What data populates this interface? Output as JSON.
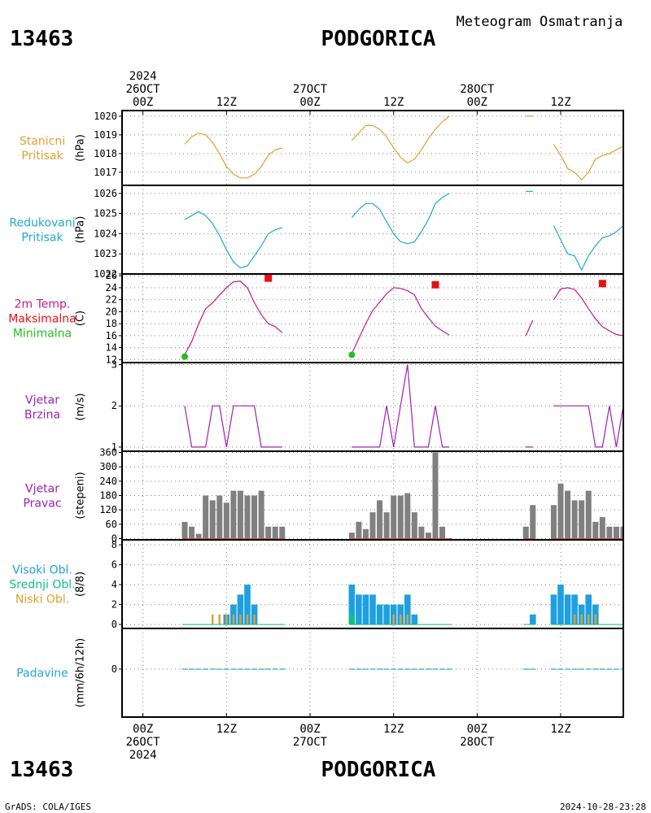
{
  "header": {
    "station_id": "13463",
    "station_name": "PODGORICA",
    "subtitle": "Meteogram Osmatranja"
  },
  "footer": {
    "station_id": "13463",
    "station_name": "PODGORICA",
    "credit": "GrADS: COLA/IGES",
    "timestamp": "2024-10-28-23:28"
  },
  "time_axis": {
    "top": [
      {
        "hour": 0,
        "lines": [
          "2024",
          "26OCT",
          "00Z"
        ]
      },
      {
        "hour": 12,
        "lines": [
          "12Z"
        ]
      },
      {
        "hour": 24,
        "lines": [
          "27OCT",
          "00Z"
        ]
      },
      {
        "hour": 36,
        "lines": [
          "12Z"
        ]
      },
      {
        "hour": 48,
        "lines": [
          "28OCT",
          "00Z"
        ]
      },
      {
        "hour": 60,
        "lines": [
          "12Z"
        ]
      }
    ],
    "bottom": [
      {
        "hour": 0,
        "lines": [
          "00Z",
          "26OCT",
          "2024"
        ]
      },
      {
        "hour": 12,
        "lines": [
          "12Z"
        ]
      },
      {
        "hour": 24,
        "lines": [
          "00Z",
          "27OCT"
        ]
      },
      {
        "hour": 36,
        "lines": [
          "12Z"
        ]
      },
      {
        "hour": 48,
        "lines": [
          "00Z",
          "28OCT"
        ]
      },
      {
        "hour": 60,
        "lines": [
          "12Z"
        ]
      }
    ],
    "range_hours": [
      -3,
      69
    ]
  },
  "colors": {
    "pressure": "#e0a030",
    "reduced": "#20a8d0",
    "temp": "#c01890",
    "tmax": "#e81010",
    "tmin": "#20c020",
    "wind": "#a020b0",
    "wind_dir": "#808080",
    "high_cloud": "#1ea0e0",
    "mid_cloud": "#10c080",
    "low_cloud": "#e0a030",
    "precip": "#20a8d0"
  },
  "chart_data": [
    {
      "type": "line",
      "labels": [
        "Stanicni",
        "Pritisak"
      ],
      "ylabel": "(hPa)",
      "ylim": [
        1016.3,
        1020.3
      ],
      "yticks": [
        1017,
        1018,
        1019,
        1020
      ],
      "series": [
        {
          "x": [
            6,
            7,
            8,
            9,
            10,
            11,
            12,
            13,
            14,
            15,
            16,
            17,
            18,
            19,
            20
          ],
          "y": [
            1018.5,
            1018.9,
            1019.1,
            1019.0,
            1018.6,
            1018.0,
            1017.3,
            1016.9,
            1016.7,
            1016.7,
            1016.9,
            1017.3,
            1017.9,
            1018.2,
            1018.3
          ]
        },
        {
          "x": [
            30,
            31,
            32,
            33,
            34,
            35,
            36,
            37,
            38,
            39,
            40,
            41,
            42,
            43,
            44
          ],
          "y": [
            1018.7,
            1019.1,
            1019.5,
            1019.5,
            1019.3,
            1018.9,
            1018.3,
            1017.8,
            1017.5,
            1017.7,
            1018.2,
            1018.8,
            1019.3,
            1019.7,
            1020.0
          ]
        },
        {
          "x": [
            55,
            56
          ],
          "y": [
            1020.0,
            1020.0
          ]
        },
        {
          "x": [
            59,
            60,
            61,
            62,
            63,
            64,
            65,
            66,
            67,
            68,
            69
          ],
          "y": [
            1018.5,
            1017.9,
            1017.2,
            1017.0,
            1016.6,
            1017.0,
            1017.7,
            1017.9,
            1018.0,
            1018.2,
            1018.4
          ]
        }
      ]
    },
    {
      "type": "line",
      "labels": [
        "Redukovani",
        "Pritisak"
      ],
      "ylabel": "(hPa)",
      "ylim": [
        1022,
        1026.4
      ],
      "yticks": [
        1022,
        1023,
        1024,
        1025,
        1026
      ],
      "series": [
        {
          "x": [
            6,
            7,
            8,
            9,
            10,
            11,
            12,
            13,
            14,
            15,
            16,
            17,
            18,
            19,
            20
          ],
          "y": [
            1024.7,
            1024.9,
            1025.1,
            1024.9,
            1024.5,
            1023.9,
            1023.2,
            1022.6,
            1022.3,
            1022.4,
            1022.9,
            1023.4,
            1024.0,
            1024.2,
            1024.3
          ]
        },
        {
          "x": [
            30,
            31,
            32,
            33,
            34,
            35,
            36,
            37,
            38,
            39,
            40,
            41,
            42,
            43,
            44
          ],
          "y": [
            1024.8,
            1025.2,
            1025.5,
            1025.5,
            1025.2,
            1024.6,
            1024.0,
            1023.6,
            1023.5,
            1023.6,
            1024.1,
            1024.7,
            1025.5,
            1025.8,
            1026.0
          ]
        },
        {
          "x": [
            55,
            56
          ],
          "y": [
            1026.1,
            1026.1
          ]
        },
        {
          "x": [
            59,
            60,
            61,
            62,
            63,
            64,
            65,
            66,
            67,
            68,
            69
          ],
          "y": [
            1024.4,
            1023.7,
            1023.0,
            1022.9,
            1022.2,
            1022.9,
            1023.4,
            1023.8,
            1023.9,
            1024.1,
            1024.4
          ]
        }
      ]
    },
    {
      "type": "line",
      "labels": [
        "2m Temp.",
        "Maksimalna",
        "Minimalna"
      ],
      "ylabel": "(C)",
      "ylim": [
        11.5,
        26.3
      ],
      "yticks": [
        12,
        14,
        16,
        18,
        20,
        22,
        24,
        26
      ],
      "series": [
        {
          "x": [
            6,
            7,
            8,
            9,
            10,
            11,
            12,
            13,
            14,
            15,
            16,
            17,
            18,
            19,
            20
          ],
          "y": [
            12.8,
            15.0,
            18.0,
            20.5,
            21.5,
            22.8,
            24.0,
            25.0,
            25.1,
            24.0,
            21.5,
            19.5,
            18.0,
            17.5,
            16.5
          ]
        },
        {
          "x": [
            30,
            31,
            32,
            33,
            34,
            35,
            36,
            37,
            38,
            39,
            40,
            41,
            42,
            43,
            44
          ],
          "y": [
            13.0,
            15.5,
            18.0,
            20.2,
            21.6,
            23.0,
            24.0,
            23.9,
            23.5,
            22.8,
            20.5,
            19.0,
            17.6,
            16.8,
            16.1
          ]
        },
        {
          "x": [
            55,
            56
          ],
          "y": [
            16.0,
            18.6
          ]
        },
        {
          "x": [
            59,
            60,
            61,
            62,
            63,
            64,
            65,
            66,
            67,
            68,
            69
          ],
          "y": [
            22.0,
            23.8,
            24.0,
            23.7,
            22.3,
            20.5,
            18.8,
            17.5,
            16.8,
            16.2,
            16.0
          ]
        }
      ],
      "maxima": [
        {
          "x": 18,
          "y": 25.6
        },
        {
          "x": 42,
          "y": 24.5
        },
        {
          "x": 66,
          "y": 24.7
        }
      ],
      "minima": [
        {
          "x": 6,
          "y": 12.5
        },
        {
          "x": 30,
          "y": 12.8
        }
      ]
    },
    {
      "type": "line",
      "labels": [
        "Vjetar",
        "Brzina"
      ],
      "ylabel": "(m/s)",
      "ylim": [
        0.9,
        3.05
      ],
      "yticks": [
        1,
        2,
        3
      ],
      "series": [
        {
          "x": [
            6,
            7,
            8,
            9,
            10,
            11,
            12,
            13,
            14,
            15,
            16,
            17,
            18,
            19,
            20
          ],
          "y": [
            2,
            1,
            1,
            1,
            2,
            2,
            1,
            2,
            2,
            2,
            2,
            1,
            1,
            1,
            1
          ]
        },
        {
          "x": [
            30,
            31,
            32,
            33,
            34,
            35,
            36,
            37,
            38,
            39,
            40,
            41,
            42,
            43,
            44
          ],
          "y": [
            1,
            1,
            1,
            1,
            1,
            2,
            1,
            2,
            3,
            1,
            1,
            1,
            2,
            1,
            1
          ]
        },
        {
          "x": [
            55,
            56
          ],
          "y": [
            1,
            1
          ]
        },
        {
          "x": [
            59,
            60,
            61,
            62,
            63,
            64,
            65,
            66,
            67,
            68,
            69
          ],
          "y": [
            2,
            2,
            2,
            2,
            2,
            2,
            1,
            1,
            2,
            1,
            2
          ]
        }
      ]
    },
    {
      "type": "bar",
      "labels": [
        "Vjetar",
        "Pravac"
      ],
      "ylabel": "(stepeni)",
      "ylim": [
        -5,
        365
      ],
      "yticks": [
        0,
        60,
        120,
        180,
        240,
        300,
        360
      ],
      "x": [
        6,
        7,
        8,
        9,
        10,
        11,
        12,
        13,
        14,
        15,
        16,
        17,
        18,
        19,
        20,
        30,
        31,
        32,
        33,
        34,
        35,
        36,
        37,
        38,
        39,
        40,
        41,
        42,
        43,
        44,
        55,
        56,
        59,
        60,
        61,
        62,
        63,
        64,
        65,
        66,
        67,
        68,
        69
      ],
      "values": [
        70,
        50,
        20,
        180,
        160,
        180,
        150,
        200,
        200,
        180,
        180,
        200,
        50,
        50,
        50,
        25,
        70,
        40,
        110,
        160,
        110,
        180,
        180,
        190,
        110,
        50,
        25,
        360,
        50,
        0,
        50,
        140,
        140,
        230,
        200,
        160,
        160,
        200,
        70,
        90,
        50,
        50,
        50
      ]
    },
    {
      "type": "bar",
      "labels": [
        "Visoki Obl.",
        "Srednji Obl.",
        "Niski Obl."
      ],
      "ylabel": "(8/8)",
      "ylim": [
        -0.4,
        8.5
      ],
      "yticks": [
        0,
        2,
        4,
        6,
        8
      ],
      "x": [
        6,
        7,
        8,
        9,
        10,
        11,
        12,
        13,
        14,
        15,
        16,
        17,
        18,
        19,
        20,
        30,
        31,
        32,
        33,
        34,
        35,
        36,
        37,
        38,
        39,
        40,
        41,
        42,
        43,
        44,
        55,
        56,
        59,
        60,
        61,
        62,
        63,
        64,
        65,
        66,
        67,
        68,
        69
      ],
      "series": [
        {
          "name": "Visoki Obl.",
          "values": [
            0,
            0,
            0,
            0,
            0,
            0,
            1,
            2,
            3,
            4,
            2,
            0,
            0,
            0,
            0,
            4,
            3,
            3,
            3,
            2,
            2,
            2,
            2,
            3,
            1,
            0,
            0,
            0,
            0,
            0,
            0,
            1,
            3,
            4,
            3,
            3,
            2,
            3,
            2,
            0,
            0,
            0,
            0
          ]
        },
        {
          "name": "Srednji Obl.",
          "values": [
            0,
            0,
            0,
            0,
            0,
            0,
            0,
            0,
            0,
            0,
            0,
            0,
            0,
            0,
            0,
            1,
            0,
            0,
            0,
            0,
            0,
            0,
            0,
            0,
            0,
            0,
            0,
            0,
            0,
            0,
            0,
            0,
            0,
            0,
            0,
            0,
            0,
            0,
            0,
            0,
            0,
            0,
            0
          ]
        },
        {
          "name": "Niski Obl.",
          "values": [
            0,
            0,
            0,
            0,
            1,
            1,
            1,
            1,
            1,
            1,
            1,
            0,
            0,
            0,
            0,
            0,
            0,
            0,
            0,
            0,
            0,
            1,
            1,
            1,
            0,
            0,
            0,
            0,
            0,
            0,
            0,
            0,
            0,
            0,
            0,
            1,
            1,
            1,
            1,
            0,
            0,
            0,
            0
          ]
        }
      ]
    },
    {
      "type": "bar",
      "labels": [
        "Padavine"
      ],
      "ylabel": "(mm/6h/12h)",
      "ylim": [
        -1.3,
        1.1
      ],
      "yticks": [
        0
      ],
      "x": [
        6,
        7,
        8,
        9,
        10,
        11,
        12,
        13,
        14,
        15,
        16,
        17,
        18,
        19,
        20,
        30,
        31,
        32,
        33,
        34,
        35,
        36,
        37,
        38,
        39,
        40,
        41,
        42,
        43,
        44,
        55,
        56,
        59,
        60,
        61,
        62,
        63,
        64,
        65,
        66,
        67,
        68,
        69
      ],
      "values": [
        0,
        0,
        0,
        0,
        0,
        0,
        0,
        0,
        0,
        0,
        0,
        0,
        0,
        0,
        0,
        0,
        0,
        0,
        0,
        0,
        0,
        0,
        0,
        0,
        0,
        0,
        0,
        0,
        0,
        0,
        0,
        0,
        0,
        0,
        0,
        0,
        0,
        0,
        0,
        0,
        0,
        0,
        0
      ]
    }
  ]
}
